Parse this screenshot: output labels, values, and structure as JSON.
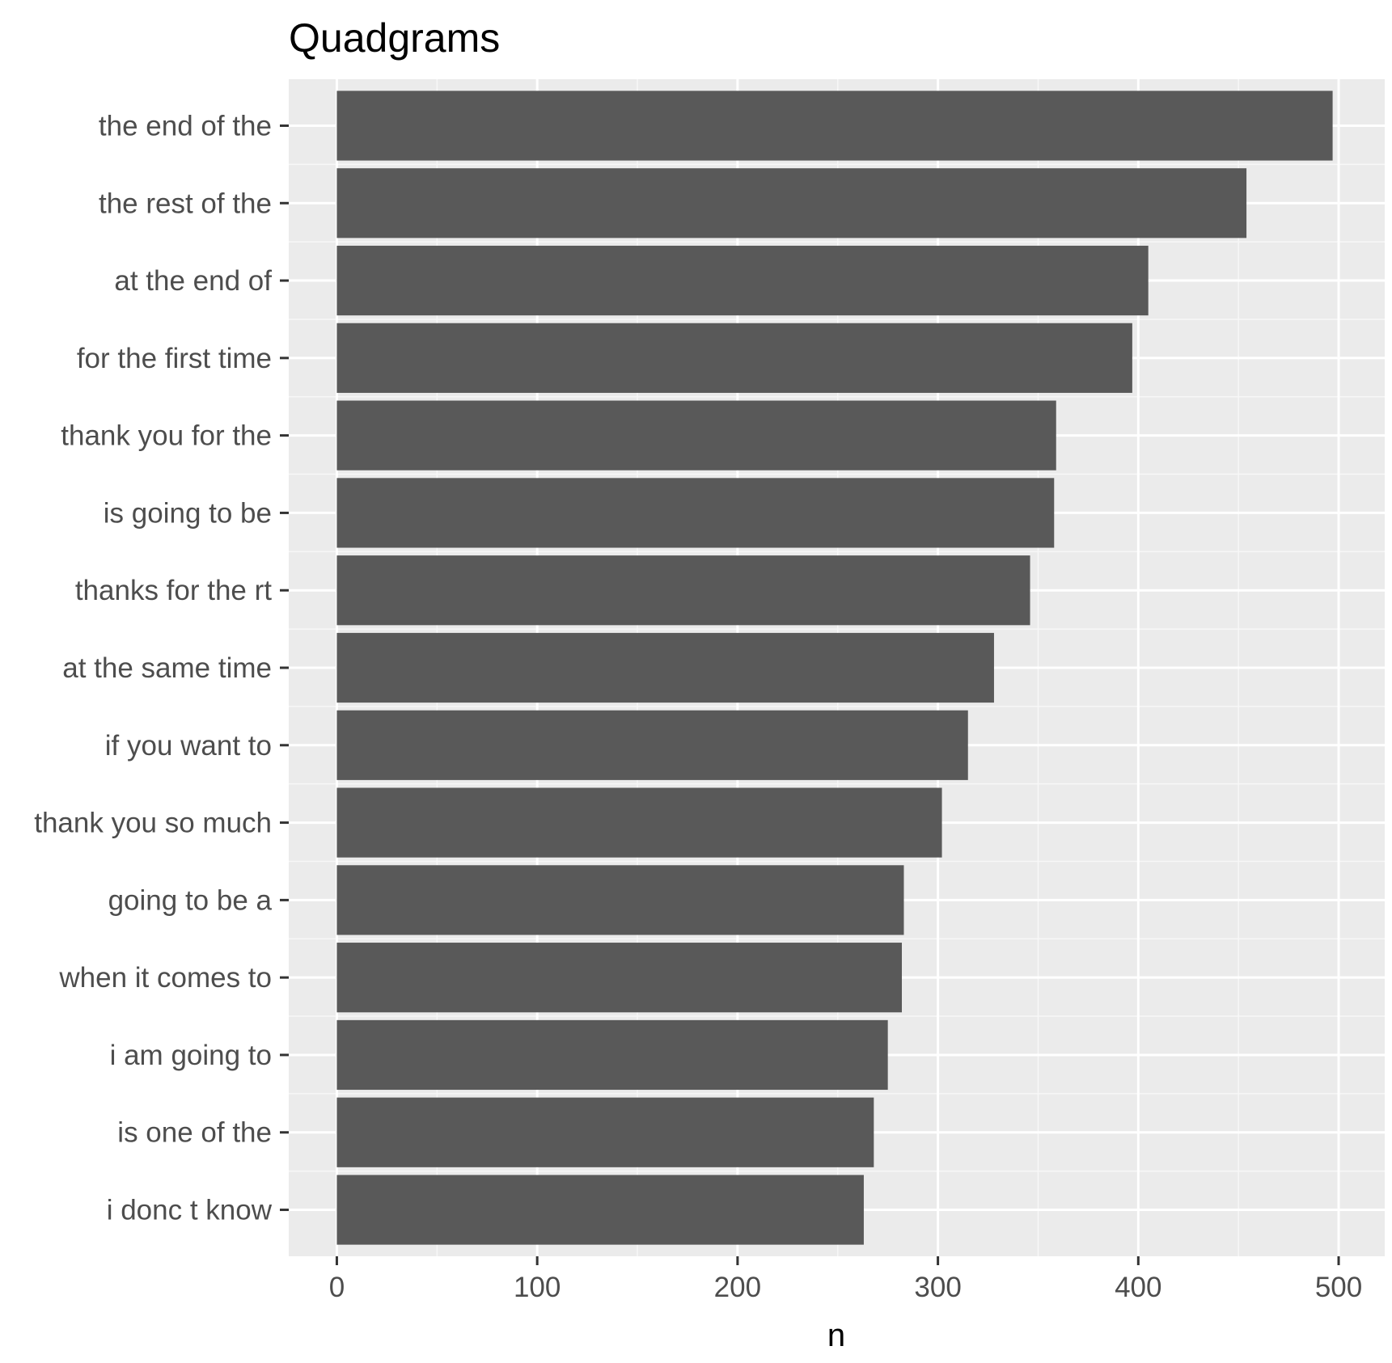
{
  "chart_data": {
    "type": "bar",
    "orientation": "horizontal",
    "title": "Quadgrams",
    "xlabel": "n",
    "ylabel": "",
    "categories": [
      "the end of the",
      "the rest of the",
      "at the end of",
      "for the first time",
      "thank you for the",
      "is going to be",
      "thanks for the rt",
      "at the same time",
      "if you want to",
      "thank you so much",
      "going to be a",
      "when it comes to",
      "i am going to",
      "is one of the",
      "i donc t know"
    ],
    "values": [
      497,
      454,
      405,
      397,
      359,
      358,
      346,
      328,
      315,
      302,
      283,
      282,
      275,
      268,
      263
    ],
    "xlim": [
      -24,
      523
    ],
    "xticks": [
      0,
      100,
      200,
      300,
      400,
      500
    ],
    "xtick_labels": [
      "0",
      "100",
      "200",
      "300",
      "400",
      "500"
    ],
    "grid": true,
    "legend": "none",
    "colors": {
      "bar": "#595959",
      "panel": "#ebebeb",
      "grid_major": "#ffffff",
      "grid_minor": "#f7f7f7",
      "tick_label": "#4d4d4d",
      "tick_mark": "#333333",
      "title": "#000000"
    }
  }
}
